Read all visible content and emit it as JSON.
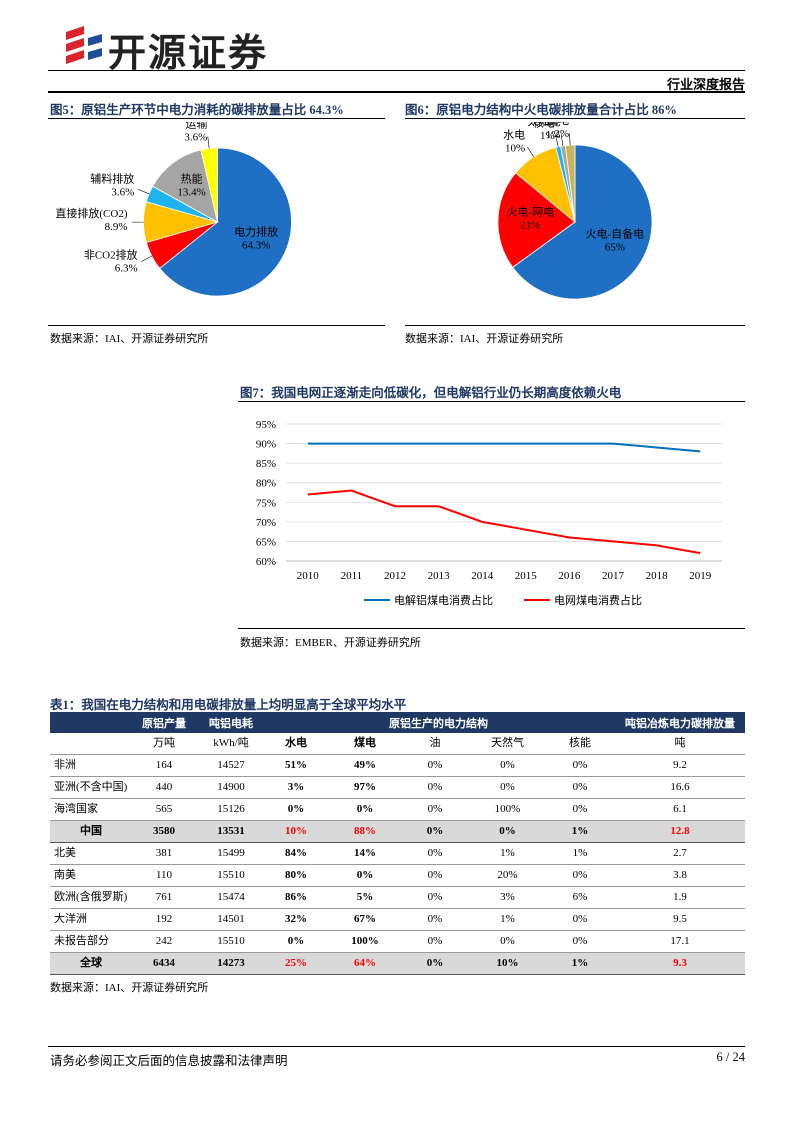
{
  "header": {
    "logo": "开源证券",
    "report_type": "行业深度报告"
  },
  "figures": [
    {
      "caption": "图5：原铝生产环节中电力消耗的碳排放量占比 64.3%",
      "source": "数据来源：IAI、开源证券研究所"
    },
    {
      "caption": "图6：原铝电力结构中火电碳排放量合计占比 86%",
      "source": "数据来源：IAI、开源证券研究所"
    },
    {
      "caption": "图7：我国电网正逐渐走向低碳化，但电解铝行业仍长期高度依赖火电",
      "source": "数据来源：EMBER、开源证券研究所"
    }
  ],
  "chart_data": [
    {
      "type": "pie",
      "categories": [
        "电力排放",
        "非CO2排放",
        "直接排放(CO2)",
        "辅料排放",
        "热能",
        "运输"
      ],
      "values": [
        64.3,
        6.3,
        8.9,
        3.6,
        13.4,
        3.6
      ],
      "value_labels": [
        "64.3%",
        "6.3%",
        "8.9%",
        "3.6%",
        "13.4%",
        "3.6%"
      ],
      "colors": [
        "#1f6fc5",
        "#ff0000",
        "#ffc000",
        "#1fb4f0",
        "#a5a5a5",
        "#ffff00"
      ]
    },
    {
      "type": "pie",
      "categories": [
        "火电-自备电",
        "火电-网电",
        "水电",
        "核电",
        "太阳能",
        "风电"
      ],
      "values": [
        65,
        21,
        10,
        1,
        1,
        2
      ],
      "value_labels": [
        "65%",
        "21%",
        "10%",
        "1%",
        "1%",
        "2%"
      ],
      "colors": [
        "#1f6fc5",
        "#ff0000",
        "#ffc000",
        "#1fb4f0",
        "#a5a5a5",
        "#c9b458"
      ]
    },
    {
      "type": "line",
      "x": [
        2010,
        2011,
        2012,
        2013,
        2014,
        2015,
        2016,
        2017,
        2018,
        2019
      ],
      "xlim": [
        2009.5,
        2019.5
      ],
      "xticks": [
        2010,
        2011,
        2012,
        2013,
        2014,
        2015,
        2016,
        2017,
        2018,
        2019
      ],
      "ylim": [
        60,
        95
      ],
      "yticks": [
        {
          "value": 60,
          "label": "60%"
        },
        {
          "value": 65,
          "label": "65%"
        },
        {
          "value": 70,
          "label": "70%"
        },
        {
          "value": 75,
          "label": "75%"
        },
        {
          "value": 80,
          "label": "80%"
        },
        {
          "value": 85,
          "label": "85%"
        },
        {
          "value": 90,
          "label": "90%"
        },
        {
          "value": 95,
          "label": "95%"
        }
      ],
      "grid": true,
      "legend": "bottom",
      "series": [
        {
          "name": "电解铝煤电消费占比",
          "color": "#0070c0",
          "values": [
            90,
            90,
            90,
            90,
            90,
            90,
            90,
            90,
            89,
            88
          ]
        },
        {
          "name": "电网煤电消费占比",
          "color": "#ff0000",
          "values": [
            77,
            78,
            74,
            74,
            70,
            68,
            66,
            65,
            64,
            62
          ]
        }
      ]
    }
  ],
  "table": {
    "caption": "表1：我国在电力结构和用电碳排放量上均明显高于全球平均水平",
    "header": [
      "原铝产量",
      "吨铝电耗",
      "原铝生产的电力结构",
      "吨铝冶炼电力碳排放量"
    ],
    "units": [
      "万吨",
      "kWh/吨",
      "水电",
      "煤电",
      "油",
      "天然气",
      "核能",
      "吨"
    ],
    "rows": [
      [
        "非洲",
        "164",
        "14527",
        "51%",
        "49%",
        "0%",
        "0%",
        "0%",
        "9.2"
      ],
      [
        "亚洲(不含中国)",
        "440",
        "14900",
        "3%",
        "97%",
        "0%",
        "0%",
        "0%",
        "16.6"
      ],
      [
        "海湾国家",
        "565",
        "15126",
        "0%",
        "0%",
        "0%",
        "100%",
        "0%",
        "6.1"
      ],
      [
        "中国",
        "3580",
        "13531",
        "10%",
        "88%",
        "0%",
        "0%",
        "1%",
        "12.8"
      ],
      [
        "北美",
        "381",
        "15499",
        "84%",
        "14%",
        "0%",
        "1%",
        "1%",
        "2.7"
      ],
      [
        "南美",
        "110",
        "15510",
        "80%",
        "0%",
        "0%",
        "20%",
        "0%",
        "3.8"
      ],
      [
        "欧洲(含俄罗斯)",
        "761",
        "15474",
        "86%",
        "5%",
        "0%",
        "3%",
        "6%",
        "1.9"
      ],
      [
        "大洋洲",
        "192",
        "14501",
        "32%",
        "67%",
        "0%",
        "1%",
        "0%",
        "9.5"
      ],
      [
        "未报告部分",
        "242",
        "15510",
        "0%",
        "100%",
        "0%",
        "0%",
        "0%",
        "17.1"
      ],
      [
        "全球",
        "6434",
        "14273",
        "25%",
        "64%",
        "0%",
        "10%",
        "1%",
        "9.3"
      ]
    ],
    "source": "数据来源：IAI、开源证券研究所"
  },
  "footer": {
    "disclaimer": "请务必参阅正文后面的信息披露和法律声明",
    "page": "6 / 24"
  }
}
